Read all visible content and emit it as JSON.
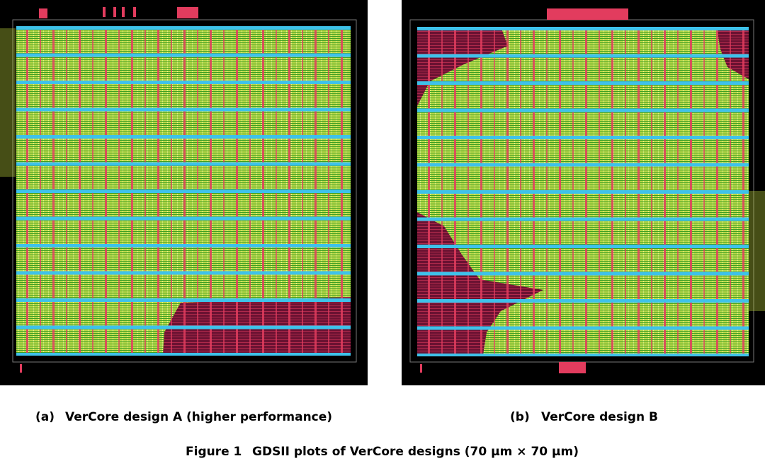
{
  "figure": {
    "subfigures": [
      {
        "label": "(a)",
        "caption": "VerCore design A (higher performance)"
      },
      {
        "label": "(b)",
        "caption": "VerCore design B"
      }
    ],
    "label": "Figure 1",
    "caption": "GDSII plots of VerCore designs (70 µm × 70 µm)"
  }
}
